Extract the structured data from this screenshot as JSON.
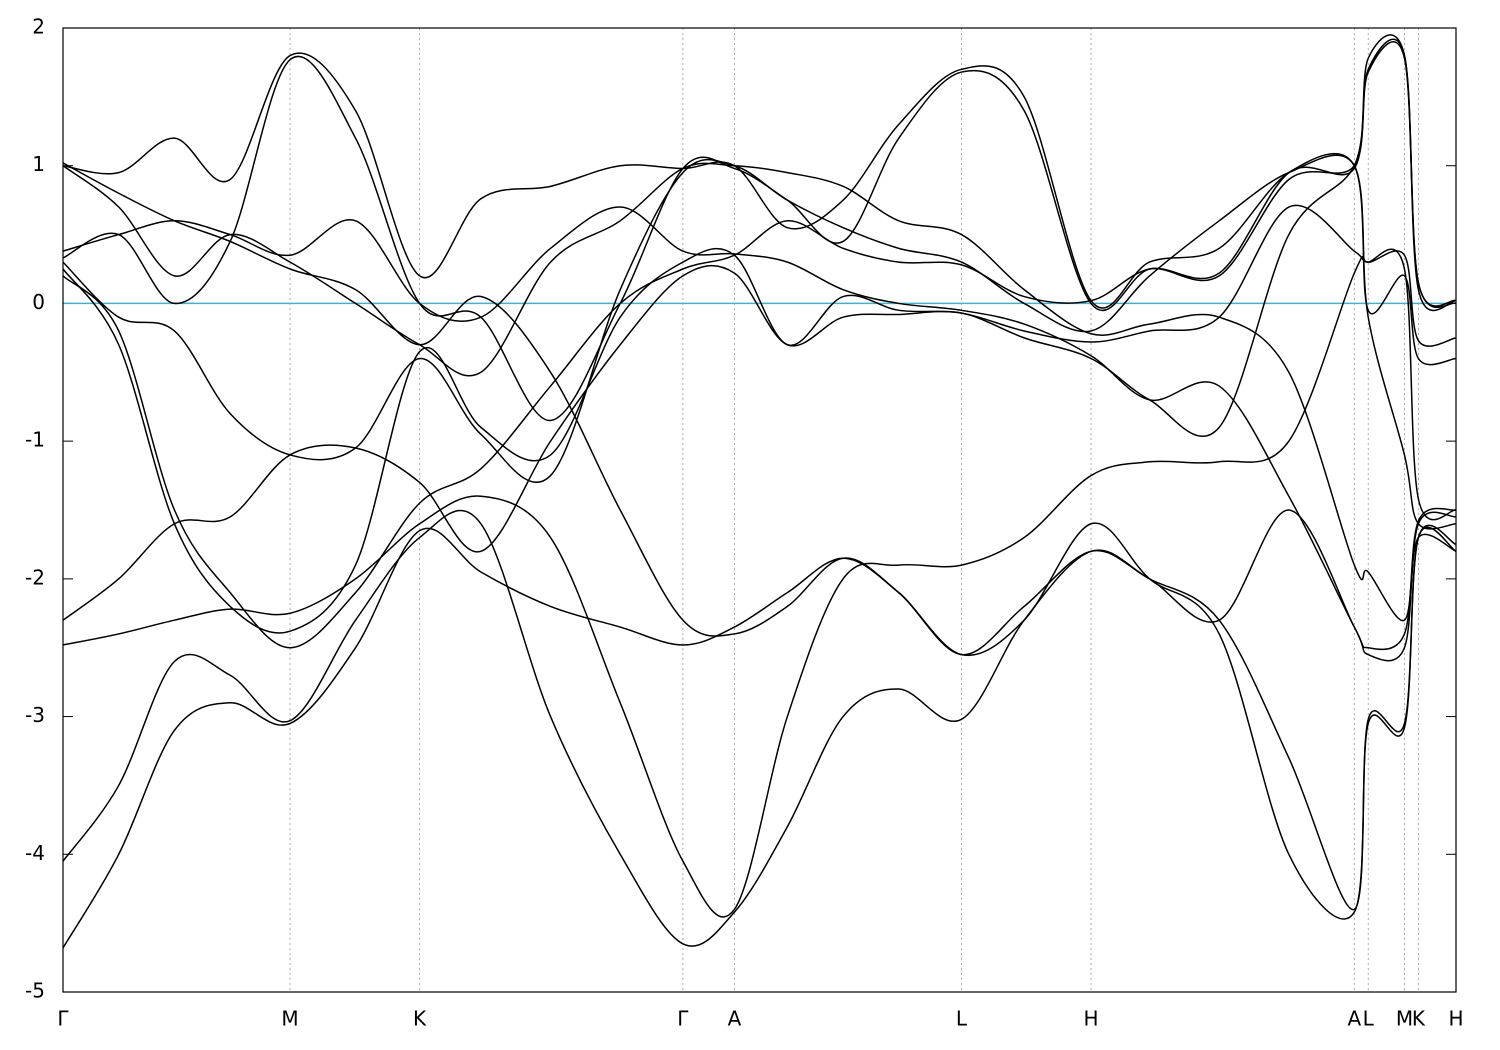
{
  "chart_data": {
    "type": "line",
    "x": [
      0,
      0.04,
      0.08,
      0.12,
      0.163,
      0.21,
      0.256,
      0.3,
      0.35,
      0.4,
      0.445,
      0.482,
      0.52,
      0.56,
      0.6,
      0.645,
      0.69,
      0.738,
      0.78,
      0.83,
      0.88,
      0.927,
      0.937,
      0.963,
      0.973,
      1.0
    ],
    "xlim": [
      0,
      1
    ],
    "xticks": [
      {
        "value": 0,
        "label": "Γ"
      },
      {
        "value": 0.163,
        "label": "M"
      },
      {
        "value": 0.256,
        "label": "K"
      },
      {
        "value": 0.445,
        "label": "Γ"
      },
      {
        "value": 0.482,
        "label": "A"
      },
      {
        "value": 0.645,
        "label": "L"
      },
      {
        "value": 0.738,
        "label": "H"
      },
      {
        "value": 0.927,
        "label": "A"
      },
      {
        "value": 0.937,
        "label": "L"
      },
      {
        "value": 0.963,
        "label": "M"
      },
      {
        "value": 0.973,
        "label": "K"
      },
      {
        "value": 1.0,
        "label": "H"
      }
    ],
    "xgrid": true,
    "ylim": [
      -5,
      2
    ],
    "yticks": [
      -5,
      -4,
      -3,
      -2,
      -1,
      0,
      1,
      2
    ],
    "reference_line": {
      "y": 0,
      "color": "#4aaecb"
    },
    "series": [
      {
        "color": "#000000",
        "values": [
          -4.68,
          -4.0,
          -3.1,
          -2.9,
          -3.05,
          -2.5,
          -1.65,
          -1.95,
          -2.2,
          -2.35,
          -2.48,
          -2.35,
          -2.1,
          -1.85,
          -2.1,
          -2.55,
          -2.2,
          -1.8,
          -2.0,
          -2.3,
          -3.3,
          -4.4,
          -3.02,
          -3.05,
          -1.7,
          -1.8
        ]
      },
      {
        "color": "#000000",
        "values": [
          -4.05,
          -3.5,
          -2.6,
          -2.7,
          -3.03,
          -2.3,
          -1.7,
          -1.6,
          -3.0,
          -4.0,
          -4.65,
          -4.42,
          -3.8,
          -3.0,
          -2.8,
          -3.02,
          -2.3,
          -1.8,
          -2.0,
          -2.3,
          -1.5,
          -2.35,
          -2.55,
          -2.5,
          -1.6,
          -1.55
        ]
      },
      {
        "color": "#000000",
        "values": [
          -2.48,
          -2.4,
          -2.3,
          -2.22,
          -2.25,
          -2.0,
          -1.6,
          -1.4,
          -1.7,
          -2.9,
          -4.05,
          -4.4,
          -3.0,
          -2.0,
          -1.9,
          -1.9,
          -1.7,
          -1.25,
          -1.15,
          -1.15,
          -1.0,
          0.22,
          0.3,
          0.25,
          -1.42,
          -1.5
        ]
      },
      {
        "color": "#000000",
        "values": [
          -2.3,
          -2.0,
          -1.6,
          -1.55,
          -1.1,
          -1.05,
          -1.3,
          -1.8,
          -1.0,
          -0.3,
          0.2,
          0.22,
          -0.3,
          -0.1,
          -0.08,
          -0.07,
          -0.25,
          -0.4,
          -0.7,
          -0.9,
          0.5,
          1.0,
          1.7,
          1.8,
          0.15,
          0.0
        ]
      },
      {
        "color": "#000000",
        "values": [
          0.2,
          -0.2,
          -1.5,
          -2.1,
          -2.5,
          -2.1,
          -1.45,
          -1.2,
          -0.6,
          0.0,
          0.25,
          0.35,
          0.6,
          0.4,
          0.3,
          0.28,
          0.05,
          0.02,
          0.25,
          0.2,
          0.9,
          1.0,
          1.68,
          1.78,
          0.1,
          0.02
        ]
      },
      {
        "color": "#000000",
        "values": [
          0.25,
          -0.3,
          -1.6,
          -2.2,
          -2.38,
          -1.9,
          -0.35,
          -0.9,
          -1.1,
          -0.1,
          0.3,
          0.35,
          -0.3,
          0.05,
          -0.05,
          -0.07,
          -0.2,
          -0.28,
          -0.2,
          -0.1,
          0.7,
          0.38,
          0.3,
          0.35,
          -0.27,
          -0.25
        ]
      },
      {
        "color": "#000000",
        "values": [
          0.3,
          -0.1,
          -0.2,
          -0.8,
          -1.1,
          -1.05,
          -0.4,
          -0.95,
          -1.25,
          0.1,
          0.95,
          1.0,
          0.75,
          0.55,
          0.4,
          0.3,
          0.0,
          -0.2,
          0.2,
          0.6,
          0.95,
          1.0,
          -0.05,
          0.2,
          -0.4,
          -0.4
        ]
      },
      {
        "color": "#000000",
        "values": [
          1.0,
          0.7,
          0.2,
          0.5,
          0.3,
          0.0,
          -0.3,
          -0.5,
          0.3,
          0.6,
          0.98,
          1.0,
          0.95,
          0.85,
          0.6,
          0.5,
          0.1,
          -0.22,
          -0.15,
          -0.1,
          -0.5,
          -1.9,
          -1.95,
          -2.3,
          -1.7,
          -1.8
        ]
      },
      {
        "color": "#000000",
        "values": [
          1.0,
          0.95,
          1.2,
          0.9,
          1.8,
          1.4,
          0.2,
          0.76,
          0.85,
          1.0,
          0.98,
          1.0,
          0.55,
          0.75,
          1.3,
          1.7,
          1.5,
          0.02,
          0.3,
          0.4,
          0.95,
          1.0,
          -0.1,
          -1.1,
          -1.6,
          -1.6
        ]
      },
      {
        "color": "#000000",
        "values": [
          0.38,
          0.5,
          0.6,
          0.5,
          0.35,
          0.6,
          0.0,
          -0.1,
          0.4,
          0.7,
          0.38,
          0.36,
          0.3,
          0.1,
          0.0,
          -0.05,
          -0.15,
          -0.38,
          -0.7,
          -0.6,
          -1.4,
          -2.35,
          -2.5,
          -2.4,
          -1.58,
          -1.5
        ]
      },
      {
        "color": "#000000",
        "values": [
          1.02,
          0.8,
          0.6,
          0.45,
          0.25,
          0.1,
          -0.3,
          0.05,
          -0.5,
          -1.5,
          -2.3,
          -2.4,
          -2.2,
          -1.85,
          -2.1,
          -2.55,
          -2.3,
          -1.6,
          -2.0,
          -2.4,
          -4.0,
          -4.42,
          -3.05,
          -3.08,
          -1.7,
          -1.75
        ]
      },
      {
        "color": "#000000",
        "values": [
          0.33,
          0.5,
          0.0,
          0.45,
          1.77,
          1.2,
          0.0,
          -0.1,
          -0.85,
          0.0,
          0.98,
          0.98,
          0.75,
          0.45,
          1.2,
          1.68,
          1.4,
          0.0,
          0.25,
          0.22,
          0.95,
          0.98,
          1.78,
          1.8,
          0.15,
          0.02
        ]
      }
    ]
  }
}
